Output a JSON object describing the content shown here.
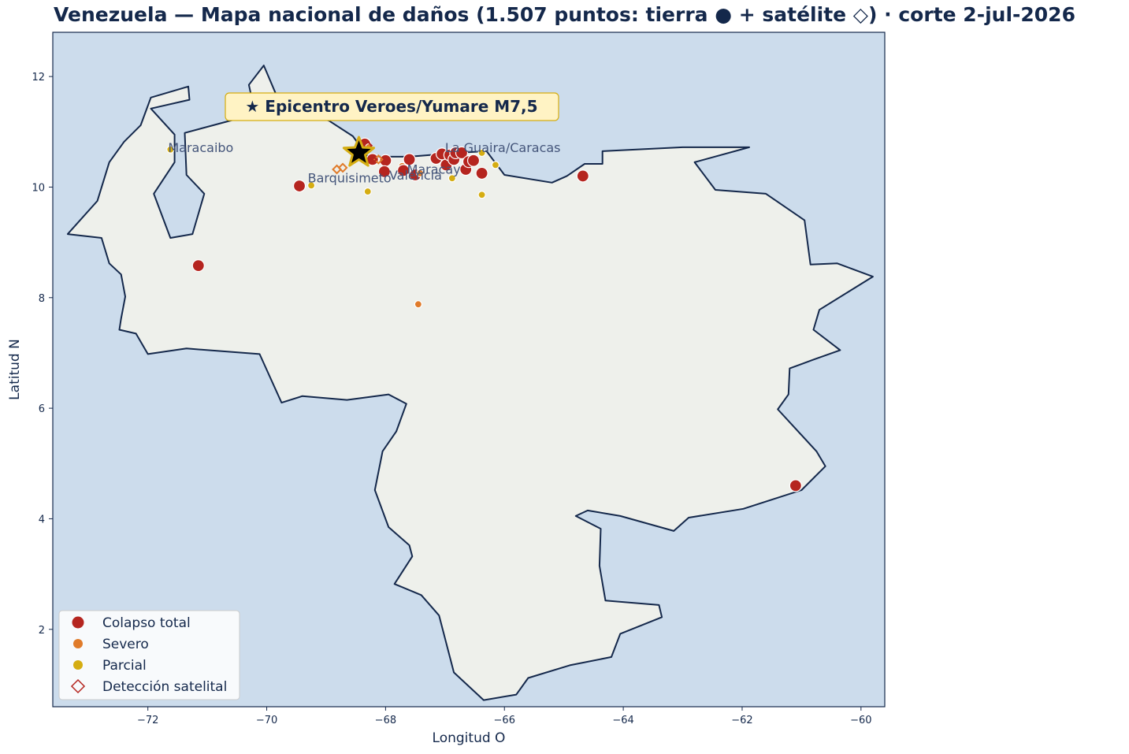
{
  "title": "Venezuela — Mapa nacional de daños (1.507 puntos: tierra ● + satélite ◇) · corte 2-jul-2026",
  "chart_data": {
    "type": "scatter",
    "xlabel": "Longitud O",
    "ylabel": "Latitud N",
    "xlim": [
      -73.6,
      -59.6
    ],
    "ylim": [
      0.6,
      12.8
    ],
    "x_ticks": [
      -72,
      -70,
      -68,
      -66,
      -64,
      -62,
      -60
    ],
    "y_ticks": [
      2,
      4,
      6,
      8,
      10,
      12
    ],
    "colors": {
      "ocean": "#ccdcec",
      "land": "#eef0eb",
      "border": "#14284b",
      "total": "#b5251f",
      "severo": "#e07b2a",
      "parcial": "#d5ad12",
      "epicenter_star": "#000000",
      "epicenter_edge": "#d5ad12",
      "annotation_bg": "#fff3c4"
    },
    "epicenter": {
      "label": "★ Epicentro Veroes/Yumare M7,5",
      "lon": -68.45,
      "lat": 10.62
    },
    "cities": [
      {
        "name": "Maracaibo",
        "lon": -71.62,
        "lat": 10.72
      },
      {
        "name": "Barquisimeto",
        "lon": -69.27,
        "lat": 10.17
      },
      {
        "name": "Valencia",
        "lon": -67.9,
        "lat": 10.22
      },
      {
        "name": "Maracay",
        "lon": -67.6,
        "lat": 10.33
      },
      {
        "name": "La Guaira/Caracas",
        "lon": -66.96,
        "lat": 10.72
      }
    ],
    "legend": {
      "position": "bottom-left",
      "items": [
        {
          "label": "Colapso total",
          "symbol": "circle",
          "category": "total"
        },
        {
          "label": "Severo",
          "symbol": "circle",
          "category": "severo"
        },
        {
          "label": "Parcial",
          "symbol": "circle",
          "category": "parcial"
        },
        {
          "label": "Detección satelital",
          "symbol": "diamond-open",
          "category": "satelite"
        }
      ]
    },
    "border": [
      [
        -73.35,
        9.15
      ],
      [
        -72.85,
        9.75
      ],
      [
        -72.65,
        10.45
      ],
      [
        -72.4,
        10.82
      ],
      [
        -72.12,
        11.12
      ],
      [
        -71.95,
        11.62
      ],
      [
        -71.32,
        11.82
      ],
      [
        -71.3,
        11.58
      ],
      [
        -71.95,
        11.42
      ],
      [
        -71.55,
        10.95
      ],
      [
        -71.55,
        10.45
      ],
      [
        -71.9,
        9.88
      ],
      [
        -71.62,
        9.08
      ],
      [
        -71.25,
        9.15
      ],
      [
        -71.05,
        9.88
      ],
      [
        -71.35,
        10.22
      ],
      [
        -71.38,
        10.98
      ],
      [
        -70.55,
        11.22
      ],
      [
        -70.2,
        11.35
      ],
      [
        -70.3,
        11.85
      ],
      [
        -70.05,
        12.2
      ],
      [
        -69.82,
        11.62
      ],
      [
        -69.6,
        11.45
      ],
      [
        -68.95,
        11.2
      ],
      [
        -68.55,
        10.92
      ],
      [
        -68.3,
        10.55
      ],
      [
        -67.6,
        10.55
      ],
      [
        -66.8,
        10.62
      ],
      [
        -66.3,
        10.65
      ],
      [
        -66.0,
        10.22
      ],
      [
        -65.2,
        10.08
      ],
      [
        -64.95,
        10.2
      ],
      [
        -64.65,
        10.42
      ],
      [
        -64.35,
        10.42
      ],
      [
        -64.35,
        10.65
      ],
      [
        -63.0,
        10.72
      ],
      [
        -61.88,
        10.72
      ],
      [
        -62.8,
        10.45
      ],
      [
        -62.45,
        9.95
      ],
      [
        -61.6,
        9.88
      ],
      [
        -60.95,
        9.4
      ],
      [
        -60.85,
        8.6
      ],
      [
        -60.4,
        8.62
      ],
      [
        -59.8,
        8.38
      ],
      [
        -60.7,
        7.78
      ],
      [
        -60.8,
        7.42
      ],
      [
        -60.35,
        7.05
      ],
      [
        -60.8,
        6.88
      ],
      [
        -61.2,
        6.72
      ],
      [
        -61.22,
        6.25
      ],
      [
        -61.4,
        5.98
      ],
      [
        -60.75,
        5.22
      ],
      [
        -60.6,
        4.95
      ],
      [
        -61.0,
        4.52
      ],
      [
        -61.98,
        4.18
      ],
      [
        -62.9,
        4.02
      ],
      [
        -63.15,
        3.78
      ],
      [
        -64.05,
        4.05
      ],
      [
        -64.6,
        4.15
      ],
      [
        -64.8,
        4.05
      ],
      [
        -64.38,
        3.82
      ],
      [
        -64.4,
        3.15
      ],
      [
        -64.3,
        2.52
      ],
      [
        -63.4,
        2.44
      ],
      [
        -63.35,
        2.22
      ],
      [
        -64.05,
        1.92
      ],
      [
        -64.2,
        1.5
      ],
      [
        -64.9,
        1.35
      ],
      [
        -65.6,
        1.12
      ],
      [
        -65.8,
        0.82
      ],
      [
        -66.35,
        0.72
      ],
      [
        -66.85,
        1.22
      ],
      [
        -67.1,
        2.25
      ],
      [
        -67.4,
        2.62
      ],
      [
        -67.85,
        2.82
      ],
      [
        -67.55,
        3.32
      ],
      [
        -67.6,
        3.52
      ],
      [
        -67.95,
        3.85
      ],
      [
        -68.18,
        4.52
      ],
      [
        -68.05,
        5.22
      ],
      [
        -67.82,
        5.58
      ],
      [
        -67.65,
        6.08
      ],
      [
        -67.95,
        6.25
      ],
      [
        -68.65,
        6.15
      ],
      [
        -69.4,
        6.22
      ],
      [
        -69.75,
        6.1
      ],
      [
        -70.12,
        6.98
      ],
      [
        -71.35,
        7.08
      ],
      [
        -72.0,
        6.98
      ],
      [
        -72.2,
        7.35
      ],
      [
        -72.48,
        7.42
      ],
      [
        -72.45,
        7.62
      ],
      [
        -72.38,
        8.02
      ],
      [
        -72.45,
        8.42
      ],
      [
        -72.65,
        8.62
      ],
      [
        -72.78,
        9.08
      ],
      [
        -73.35,
        9.15
      ]
    ],
    "points": [
      {
        "lon": -68.35,
        "lat": 10.78,
        "cat": "total",
        "src": "tierra"
      },
      {
        "lon": -68.28,
        "lat": 10.72,
        "cat": "severo",
        "src": "tierra"
      },
      {
        "lon": -68.22,
        "lat": 10.5,
        "cat": "total",
        "src": "tierra"
      },
      {
        "lon": -68.0,
        "lat": 10.48,
        "cat": "total",
        "src": "tierra"
      },
      {
        "lon": -68.02,
        "lat": 10.28,
        "cat": "total",
        "src": "tierra"
      },
      {
        "lon": -67.72,
        "lat": 10.38,
        "cat": "severo",
        "src": "tierra"
      },
      {
        "lon": -67.7,
        "lat": 10.3,
        "cat": "total",
        "src": "tierra"
      },
      {
        "lon": -67.6,
        "lat": 10.5,
        "cat": "total",
        "src": "tierra"
      },
      {
        "lon": -67.5,
        "lat": 10.22,
        "cat": "total",
        "src": "tierra"
      },
      {
        "lon": -67.42,
        "lat": 10.25,
        "cat": "severo",
        "src": "tierra"
      },
      {
        "lon": -67.15,
        "lat": 10.52,
        "cat": "total",
        "src": "tierra"
      },
      {
        "lon": -67.05,
        "lat": 10.6,
        "cat": "total",
        "src": "tierra"
      },
      {
        "lon": -66.98,
        "lat": 10.4,
        "cat": "total",
        "src": "tierra"
      },
      {
        "lon": -66.92,
        "lat": 10.58,
        "cat": "total",
        "src": "tierra"
      },
      {
        "lon": -66.85,
        "lat": 10.5,
        "cat": "total",
        "src": "tierra"
      },
      {
        "lon": -66.82,
        "lat": 10.62,
        "cat": "total",
        "src": "tierra"
      },
      {
        "lon": -66.72,
        "lat": 10.62,
        "cat": "total",
        "src": "tierra"
      },
      {
        "lon": -66.65,
        "lat": 10.32,
        "cat": "total",
        "src": "tierra"
      },
      {
        "lon": -66.6,
        "lat": 10.46,
        "cat": "total",
        "src": "tierra"
      },
      {
        "lon": -66.52,
        "lat": 10.48,
        "cat": "total",
        "src": "tierra"
      },
      {
        "lon": -66.38,
        "lat": 10.25,
        "cat": "total",
        "src": "tierra"
      },
      {
        "lon": -66.38,
        "lat": 10.62,
        "cat": "parcial",
        "src": "tierra"
      },
      {
        "lon": -66.38,
        "lat": 9.86,
        "cat": "parcial",
        "src": "tierra"
      },
      {
        "lon": -66.15,
        "lat": 10.4,
        "cat": "parcial",
        "src": "tierra"
      },
      {
        "lon": -66.88,
        "lat": 10.16,
        "cat": "parcial",
        "src": "tierra"
      },
      {
        "lon": -68.3,
        "lat": 9.92,
        "cat": "parcial",
        "src": "tierra"
      },
      {
        "lon": -69.45,
        "lat": 10.02,
        "cat": "total",
        "src": "tierra"
      },
      {
        "lon": -69.25,
        "lat": 10.03,
        "cat": "parcial",
        "src": "tierra"
      },
      {
        "lon": -71.62,
        "lat": 10.68,
        "cat": "parcial",
        "src": "tierra"
      },
      {
        "lon": -71.15,
        "lat": 8.58,
        "cat": "total",
        "src": "tierra"
      },
      {
        "lon": -67.45,
        "lat": 7.88,
        "cat": "severo",
        "src": "tierra"
      },
      {
        "lon": -64.68,
        "lat": 10.2,
        "cat": "total",
        "src": "tierra"
      },
      {
        "lon": -61.1,
        "lat": 4.6,
        "cat": "total",
        "src": "tierra"
      },
      {
        "lon": -68.12,
        "lat": 10.5,
        "cat": "severo",
        "src": "satelite"
      },
      {
        "lon": -68.22,
        "lat": 10.5,
        "cat": "total",
        "src": "satelite"
      },
      {
        "lon": -68.72,
        "lat": 10.35,
        "cat": "severo",
        "src": "satelite"
      },
      {
        "lon": -68.82,
        "lat": 10.32,
        "cat": "severo",
        "src": "satelite"
      },
      {
        "lon": -68.3,
        "lat": 10.75,
        "cat": "total",
        "src": "satelite"
      }
    ]
  }
}
